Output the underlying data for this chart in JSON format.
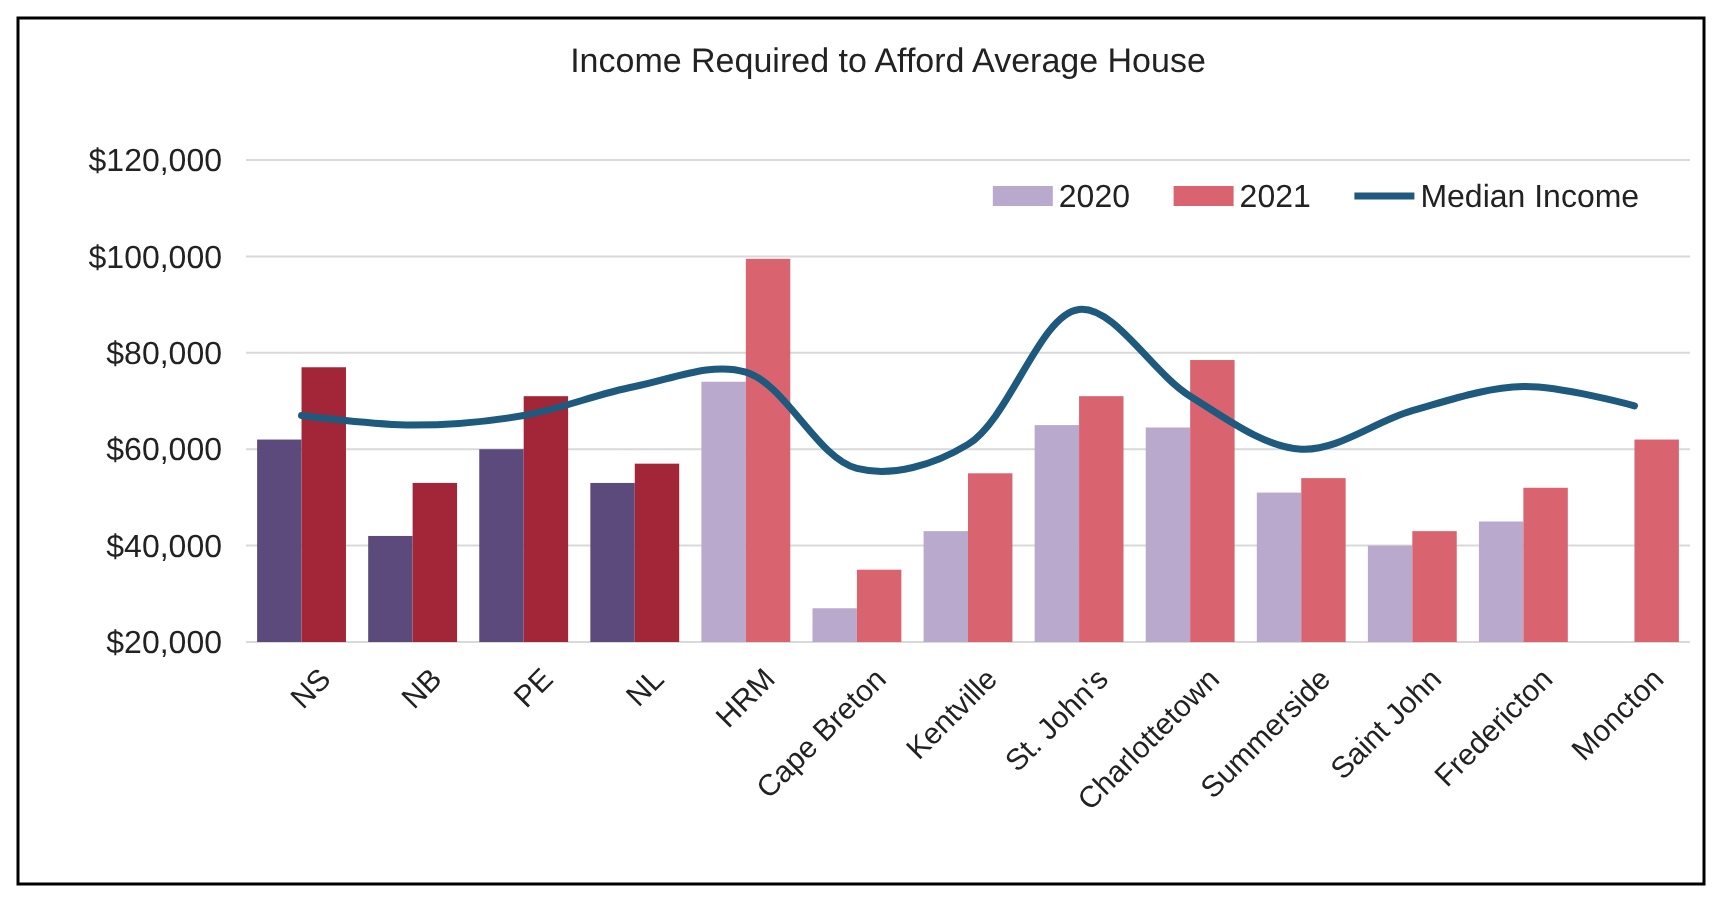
{
  "chart_data": {
    "type": "bar",
    "title": "Income Required to Afford Average House",
    "categories": [
      "NS",
      "NB",
      "PE",
      "NL",
      "HRM",
      "Cape Breton",
      "Kentville",
      "St. John's",
      "Charlottetown",
      "Summerside",
      "Saint John",
      "Fredericton",
      "Moncton"
    ],
    "series": [
      {
        "name": "2020",
        "color": "#b9a9cc",
        "colors": [
          "#5c4a7d",
          "#5c4a7d",
          "#5c4a7d",
          "#5c4a7d",
          "#b9a9cc",
          "#b9a9cc",
          "#b9a9cc",
          "#b9a9cc",
          "#b9a9cc",
          "#b9a9cc",
          "#b9a9cc",
          "#b9a9cc",
          null
        ],
        "values": [
          62000,
          42000,
          60000,
          53000,
          74000,
          27000,
          43000,
          65000,
          64500,
          51000,
          40000,
          45000,
          null
        ]
      },
      {
        "name": "2021",
        "color": "#d9646f",
        "colors": [
          "#a32638",
          "#a32638",
          "#a32638",
          "#a32638",
          "#d9646f",
          "#d9646f",
          "#d9646f",
          "#d9646f",
          "#d9646f",
          "#d9646f",
          "#d9646f",
          "#d9646f",
          "#d9646f"
        ],
        "values": [
          77000,
          53000,
          71000,
          57000,
          99500,
          35000,
          55000,
          71000,
          78500,
          54000,
          43000,
          52000,
          62000
        ]
      },
      {
        "name": "Median Income",
        "type": "line",
        "color": "#1d5a7e",
        "values": [
          67000,
          65000,
          67000,
          73000,
          76000,
          56000,
          61000,
          89000,
          71000,
          60000,
          68000,
          73000,
          69000
        ]
      }
    ],
    "ylim": [
      20000,
      120000
    ],
    "yticks": [
      {
        "value": 20000,
        "label": "$20,000"
      },
      {
        "value": 40000,
        "label": "$40,000"
      },
      {
        "value": 60000,
        "label": "$60,000"
      },
      {
        "value": 80000,
        "label": "$80,000"
      },
      {
        "value": 100000,
        "label": "$100,000"
      },
      {
        "value": 120000,
        "label": "$120,000"
      }
    ],
    "grid": "y",
    "legend": "top right",
    "marker": "none",
    "line_style": "solid"
  }
}
